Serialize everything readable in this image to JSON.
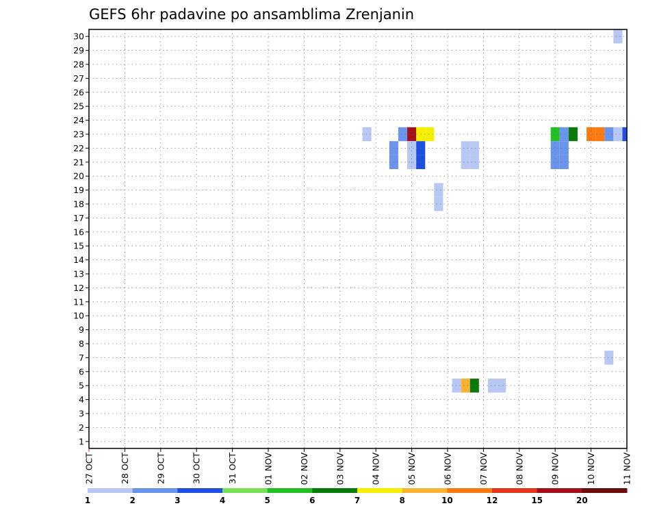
{
  "chart_data": {
    "type": "heatmap",
    "title": "GEFS 6hr padavine po ansamblima Zrenjanin",
    "xlabel": "",
    "ylabel": "",
    "x_ticks": [
      "27 OCT",
      "28 OCT",
      "29 OCT",
      "30 OCT",
      "31 OCT",
      "01 NOV",
      "02 NOV",
      "03 NOV",
      "04 NOV",
      "05 NOV",
      "06 NOV",
      "07 NOV",
      "08 NOV",
      "09 NOV",
      "10 NOV",
      "11 NOV"
    ],
    "xlim_days": [
      0,
      15
    ],
    "y_ticks": [
      1,
      2,
      3,
      4,
      5,
      6,
      7,
      8,
      9,
      10,
      11,
      12,
      13,
      14,
      15,
      16,
      17,
      18,
      19,
      20,
      21,
      22,
      23,
      24,
      25,
      26,
      27,
      28,
      29,
      30
    ],
    "ylim": [
      0.5,
      30.5
    ],
    "grid": true,
    "colorbar": {
      "labels": [
        "1",
        "2",
        "3",
        "4",
        "5",
        "6",
        "7",
        "8",
        "10",
        "12",
        "15",
        "20"
      ],
      "colors": [
        "#b7c8f5",
        "#6b94ec",
        "#1e4fe0",
        "#78e054",
        "#22c025",
        "#0a7a0a",
        "#f6f000",
        "#fbb233",
        "#fa7b12",
        "#e4361a",
        "#a4101a",
        "#6b0d0d"
      ]
    },
    "cells": [
      {
        "member": 30,
        "day": 14.75,
        "value": 1
      },
      {
        "member": 23,
        "day": 7.75,
        "value": 1
      },
      {
        "member": 23,
        "day": 8.75,
        "value": 2
      },
      {
        "member": 23,
        "day": 9.0,
        "value": 15
      },
      {
        "member": 23,
        "day": 9.25,
        "value": 7
      },
      {
        "member": 23,
        "day": 9.5,
        "value": 7
      },
      {
        "member": 23,
        "day": 13.0,
        "value": 5
      },
      {
        "member": 23,
        "day": 13.25,
        "value": 2
      },
      {
        "member": 23,
        "day": 13.5,
        "value": 6
      },
      {
        "member": 23,
        "day": 14.0,
        "value": 10
      },
      {
        "member": 23,
        "day": 14.25,
        "value": 10
      },
      {
        "member": 23,
        "day": 14.5,
        "value": 2
      },
      {
        "member": 23,
        "day": 14.75,
        "value": 1
      },
      {
        "member": 23,
        "day": 15.0,
        "value": 3
      },
      {
        "member": 22,
        "day": 8.5,
        "value": 2
      },
      {
        "member": 22,
        "day": 9.0,
        "value": 1
      },
      {
        "member": 22,
        "day": 9.25,
        "value": 3
      },
      {
        "member": 22,
        "day": 10.5,
        "value": 1
      },
      {
        "member": 22,
        "day": 10.75,
        "value": 1
      },
      {
        "member": 22,
        "day": 13.0,
        "value": 2
      },
      {
        "member": 22,
        "day": 13.25,
        "value": 2
      },
      {
        "member": 21,
        "day": 8.5,
        "value": 2
      },
      {
        "member": 21,
        "day": 9.0,
        "value": 1
      },
      {
        "member": 21,
        "day": 9.25,
        "value": 3
      },
      {
        "member": 21,
        "day": 10.5,
        "value": 1
      },
      {
        "member": 21,
        "day": 10.75,
        "value": 1
      },
      {
        "member": 21,
        "day": 13.0,
        "value": 2
      },
      {
        "member": 21,
        "day": 13.25,
        "value": 2
      },
      {
        "member": 19,
        "day": 9.75,
        "value": 1
      },
      {
        "member": 18,
        "day": 9.75,
        "value": 1
      },
      {
        "member": 7,
        "day": 14.5,
        "value": 1
      },
      {
        "member": 5,
        "day": 10.25,
        "value": 1
      },
      {
        "member": 5,
        "day": 10.5,
        "value": 8
      },
      {
        "member": 5,
        "day": 10.75,
        "value": 6
      },
      {
        "member": 5,
        "day": 11.25,
        "value": 1
      },
      {
        "member": 5,
        "day": 11.5,
        "value": 1
      }
    ]
  }
}
